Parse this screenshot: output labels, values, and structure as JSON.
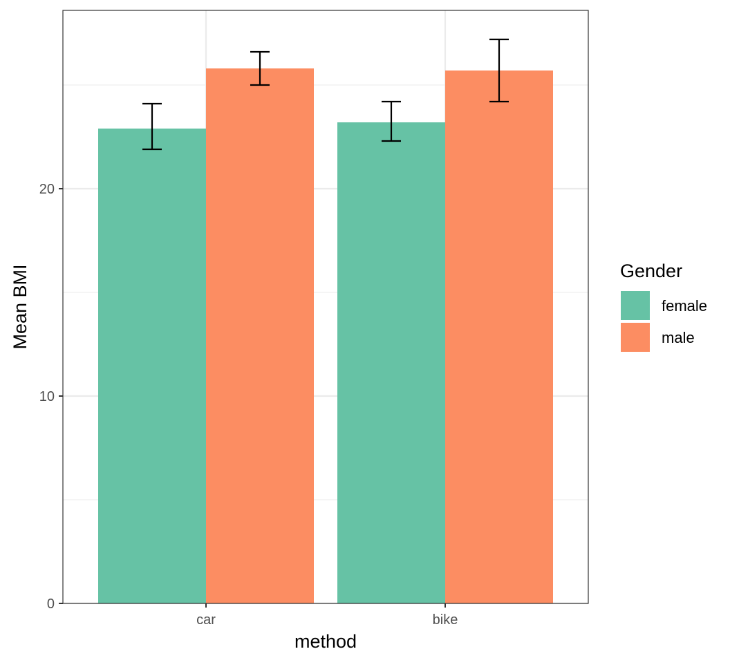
{
  "chart_data": {
    "type": "bar",
    "title": "",
    "xlabel": "method",
    "ylabel": "Mean BMI",
    "categories": [
      "car",
      "bike"
    ],
    "ylim": [
      0,
      28.6
    ],
    "yticks": [
      0,
      10,
      20
    ],
    "grid": true,
    "series": [
      {
        "name": "female",
        "color": "#66c2a5",
        "values": [
          22.9,
          23.2
        ],
        "error_low": [
          21.9,
          22.3
        ],
        "error_high": [
          24.1,
          24.2
        ]
      },
      {
        "name": "male",
        "color": "#fc8d62",
        "values": [
          25.8,
          25.7
        ],
        "error_low": [
          25.0,
          24.2
        ],
        "error_high": [
          26.6,
          27.2
        ]
      }
    ],
    "legend": {
      "title": "Gender",
      "placement": "right"
    }
  }
}
